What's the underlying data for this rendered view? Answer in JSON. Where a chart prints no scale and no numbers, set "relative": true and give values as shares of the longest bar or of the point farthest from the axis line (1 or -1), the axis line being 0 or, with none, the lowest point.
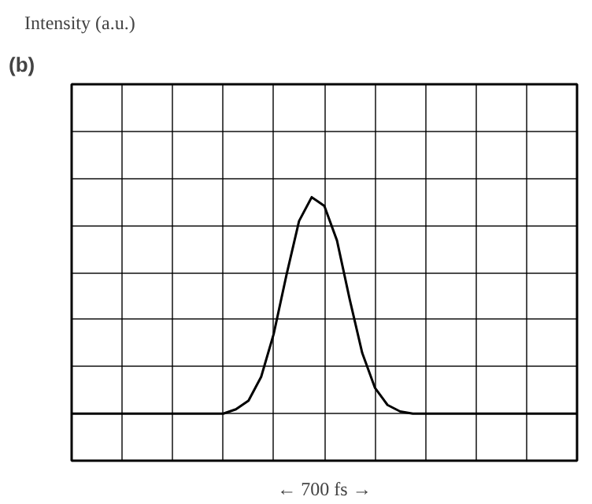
{
  "chart_data": {
    "type": "line",
    "relative": true,
    "annotations": [
      "(b)",
      "← 700 fs →",
      "Intensity (a.u.)"
    ],
    "grid": true,
    "color": "#000000",
    "categories": [
      null,
      null,
      null,
      null,
      null,
      null,
      null,
      null,
      null,
      null,
      null,
      null,
      null,
      null,
      null,
      null,
      null,
      null,
      null,
      null,
      null,
      null,
      null,
      null,
      null,
      null,
      null,
      null,
      null,
      null,
      null,
      null,
      null,
      null,
      null,
      null,
      null,
      null,
      null,
      null,
      null
    ],
    "values": [
      0,
      0,
      0,
      0,
      0,
      0,
      0,
      0,
      0,
      0,
      0,
      0,
      0,
      0.02,
      0.06,
      0.17,
      0.37,
      0.64,
      0.89,
      1,
      0.96,
      0.8,
      0.53,
      0.28,
      0.12,
      0.04,
      0.01,
      0,
      0,
      0,
      0,
      0,
      0,
      0,
      0,
      0,
      0,
      0,
      0,
      0,
      0
    ]
  }
}
